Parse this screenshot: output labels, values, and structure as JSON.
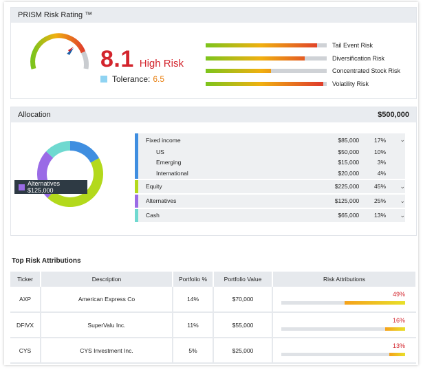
{
  "rating": {
    "title": "PRISM Risk Rating ™",
    "score": "8.1",
    "score_label": "High Risk",
    "score_value": 8.1,
    "tolerance_label": "Tolerance:",
    "tolerance_value": "6.5",
    "risks": [
      {
        "name": "Tail Event Risk",
        "level": 0.92
      },
      {
        "name": "Diversification Risk",
        "level": 0.82
      },
      {
        "name": "Concentrated Stock Risk",
        "level": 0.54
      },
      {
        "name": "Volatility Risk",
        "level": 0.97
      }
    ]
  },
  "allocation": {
    "title": "Allocation",
    "total": "$500,000",
    "tooltip": "Alternatives $125,000",
    "groups": [
      {
        "color": "#3f8ee0",
        "rows": [
          {
            "name": "Fixed income",
            "value": "$85,000",
            "pct": "17%",
            "chevron": true
          },
          {
            "name": "US",
            "value": "$50,000",
            "pct": "10%",
            "chevron": false
          },
          {
            "name": "Emerging",
            "value": "$15,000",
            "pct": "3%",
            "chevron": false
          },
          {
            "name": "International",
            "value": "$20,000",
            "pct": "4%",
            "chevron": false
          }
        ]
      },
      {
        "color": "#b3d91c",
        "rows": [
          {
            "name": "Equity",
            "value": "$225,000",
            "pct": "45%",
            "chevron": true
          }
        ]
      },
      {
        "color": "#9a6be6",
        "rows": [
          {
            "name": "Alternatives",
            "value": "$125,000",
            "pct": "25%",
            "chevron": true
          }
        ]
      },
      {
        "color": "#6fd9d0",
        "rows": [
          {
            "name": "Cash",
            "value": "$65,000",
            "pct": "13%",
            "chevron": true
          }
        ]
      }
    ],
    "chart_data": {
      "type": "pie",
      "categories": [
        "Fixed income",
        "Equity",
        "Alternatives",
        "Cash"
      ],
      "values": [
        17,
        45,
        25,
        13
      ],
      "colors": [
        "#3f8ee0",
        "#b3d91c",
        "#9a6be6",
        "#6fd9d0"
      ]
    }
  },
  "attributions": {
    "title": "Top Risk Attributions",
    "headers": [
      "Ticker",
      "Description",
      "Portfolio %",
      "Portfolio Value",
      "Risk Attributions"
    ],
    "rows": [
      {
        "ticker": "AXP",
        "description": "American Express Co",
        "pct": "14%",
        "value": "$70,000",
        "risk": "49%",
        "risk_value": 49
      },
      {
        "ticker": "DFIVX",
        "description": "SuperValu Inc.",
        "pct": "11%",
        "value": "$55,000",
        "risk": "16%",
        "risk_value": 16
      },
      {
        "ticker": "CYS",
        "description": "CYS Investment Inc.",
        "pct": "5%",
        "value": "$25,000",
        "risk": "13%",
        "risk_value": 13
      }
    ]
  }
}
